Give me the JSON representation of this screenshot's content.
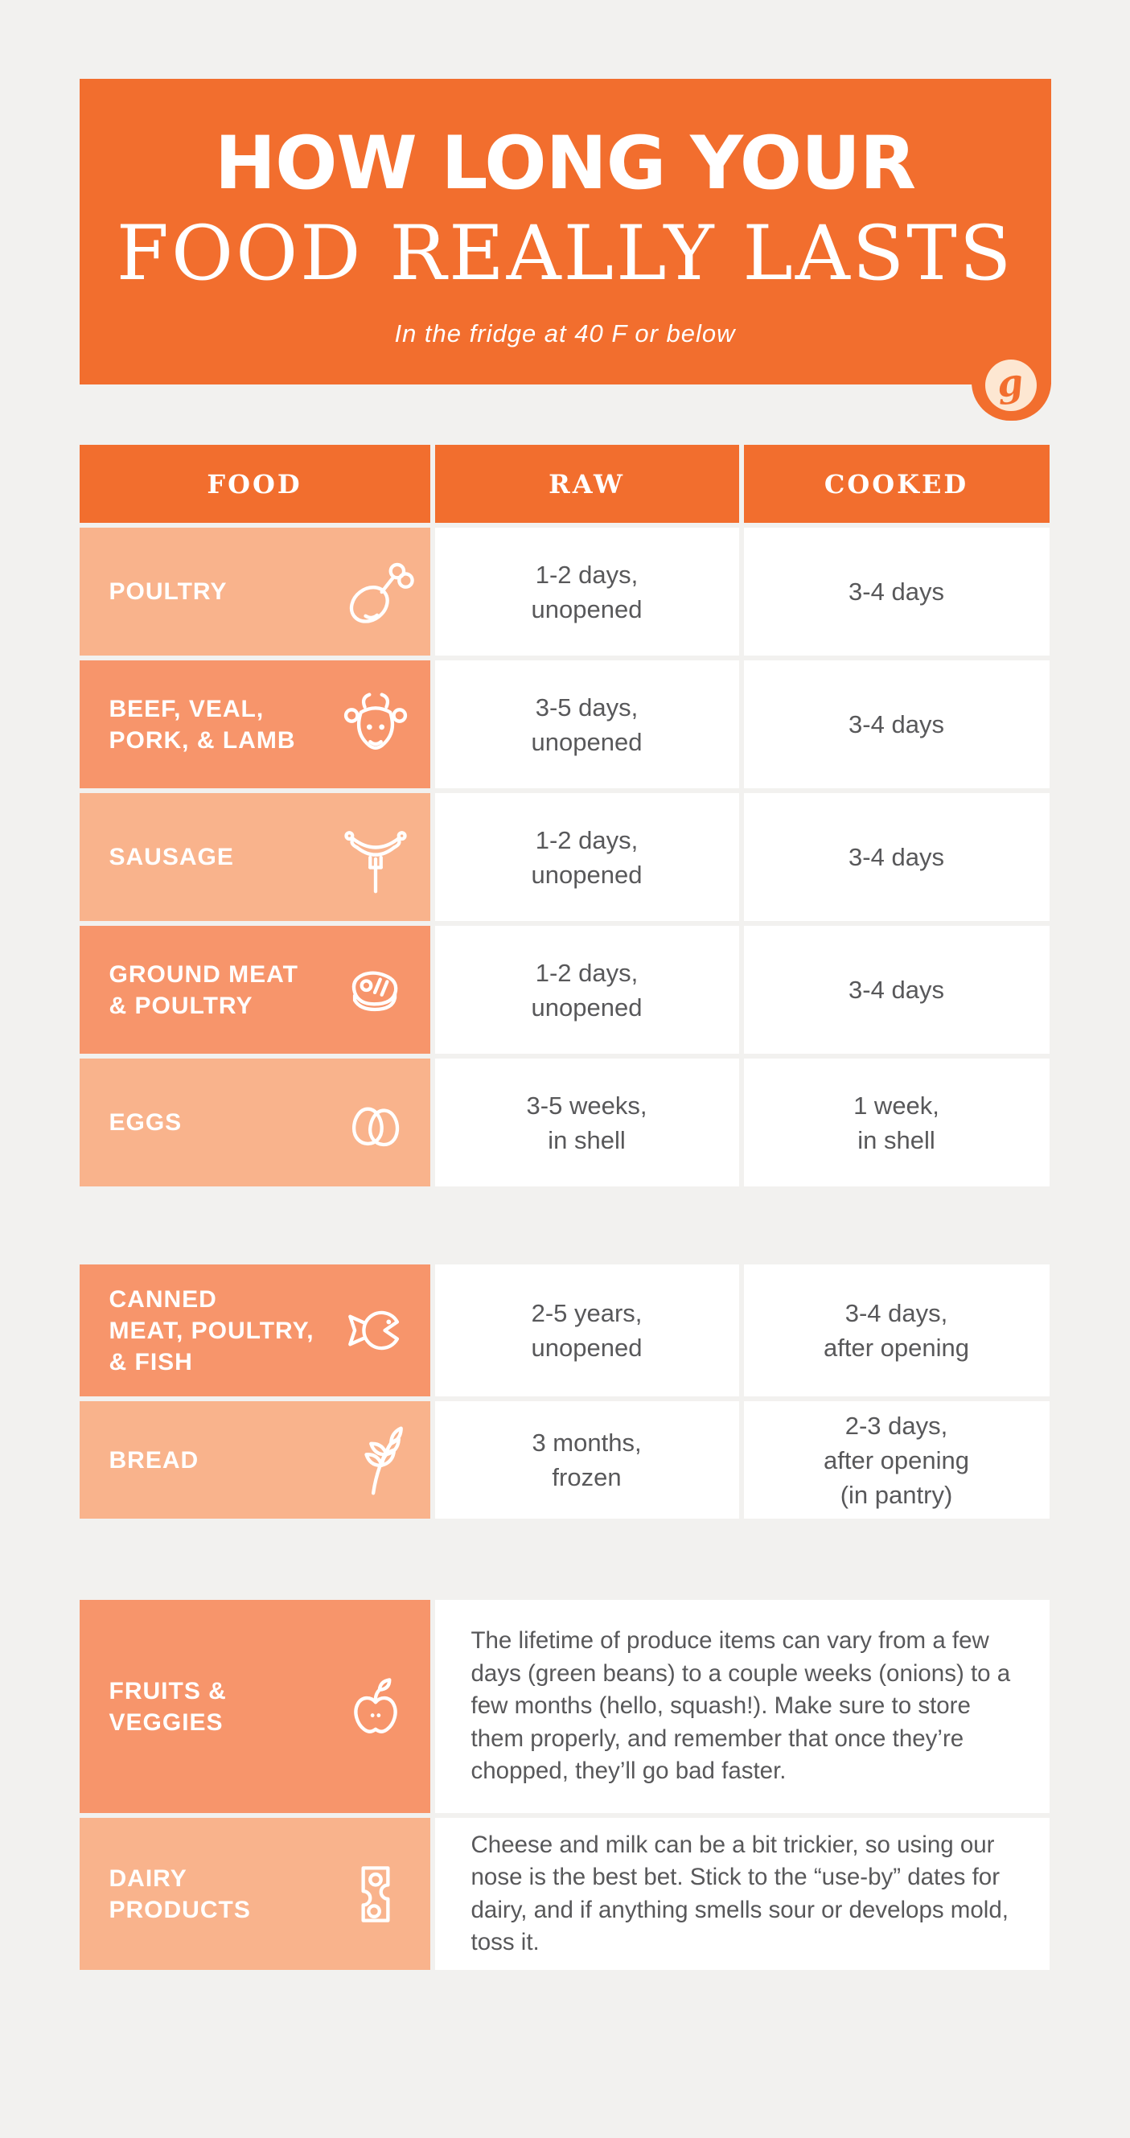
{
  "colors": {
    "header_orange": "#f26e2e",
    "row_dark": "#f7956b",
    "row_light": "#f9b38c",
    "page_background": "#f2f1ef",
    "body_text": "#58585a",
    "logo_circle_cream": "#fde7d2"
  },
  "banner": {
    "title_line1": "HOW LONG YOUR",
    "title_line2": "FOOD REALLY LASTS",
    "subtitle": "In the fridge at 40 F or below",
    "logo_letter": "g"
  },
  "table": {
    "columns": [
      "FOOD",
      "RAW",
      "COOKED"
    ],
    "section_meats": {
      "rows": [
        {
          "label_lines": [
            "POULTRY"
          ],
          "icon": "drumstick-icon",
          "shade": "light",
          "raw_lines": [
            "1-2 days,",
            "unopened"
          ],
          "cooked_lines": [
            "3-4 days"
          ]
        },
        {
          "label_lines": [
            "BEEF, VEAL,",
            "PORK, & LAMB"
          ],
          "icon": "cow-icon",
          "shade": "dark",
          "raw_lines": [
            "3-5 days,",
            "unopened"
          ],
          "cooked_lines": [
            "3-4 days"
          ]
        },
        {
          "label_lines": [
            "SAUSAGE"
          ],
          "icon": "sausage-fork-icon",
          "shade": "light",
          "raw_lines": [
            "1-2 days,",
            "unopened"
          ],
          "cooked_lines": [
            "3-4 days"
          ]
        },
        {
          "label_lines": [
            "GROUND MEAT",
            "& POULTRY"
          ],
          "icon": "steak-icon",
          "shade": "dark",
          "raw_lines": [
            "1-2 days,",
            "unopened"
          ],
          "cooked_lines": [
            "3-4 days"
          ]
        },
        {
          "label_lines": [
            "EGGS"
          ],
          "icon": "eggs-icon",
          "shade": "light",
          "raw_lines": [
            "3-5 weeks,",
            "in shell"
          ],
          "cooked_lines": [
            "1 week,",
            "in shell"
          ]
        }
      ]
    },
    "section_pantry": {
      "rows": [
        {
          "label_lines": [
            "CANNED",
            "MEAT, POULTRY,",
            "& FISH"
          ],
          "icon": "fish-icon",
          "shade": "dark",
          "raw_lines": [
            "2-5 years,",
            "unopened"
          ],
          "cooked_lines": [
            "3-4 days,",
            "after opening"
          ]
        },
        {
          "label_lines": [
            "BREAD"
          ],
          "icon": "wheat-icon",
          "shade": "light",
          "raw_lines": [
            "3 months,",
            "frozen"
          ],
          "cooked_lines": [
            "2-3 days,",
            "after opening",
            "(in pantry)"
          ]
        }
      ]
    },
    "section_notes": {
      "rows": [
        {
          "label_lines": [
            "FRUITS &",
            "VEGGIES"
          ],
          "icon": "apple-icon",
          "shade": "dark",
          "note": "The lifetime of produce items can vary from a few days (green beans) to a couple weeks (onions) to a few months (hello, squash!). Make sure to store them properly, and remember that once they’re chopped, they’ll go bad faster."
        },
        {
          "label_lines": [
            "DAIRY PRODUCTS"
          ],
          "icon": "cheese-icon",
          "shade": "light",
          "note": "Cheese and milk can be a bit trickier, so using our nose is the best bet. Stick to the “use-by” dates for dairy, and if anything smells sour or develops mold, toss it."
        }
      ]
    }
  },
  "chart_data": {
    "type": "table",
    "title": "HOW LONG YOUR FOOD REALLY LASTS",
    "subtitle": "In the fridge at 40 F or below",
    "columns": [
      "FOOD",
      "RAW",
      "COOKED"
    ],
    "rows": [
      [
        "POULTRY",
        "1-2 days, unopened",
        "3-4 days"
      ],
      [
        "BEEF, VEAL, PORK, & LAMB",
        "3-5 days, unopened",
        "3-4 days"
      ],
      [
        "SAUSAGE",
        "1-2 days, unopened",
        "3-4 days"
      ],
      [
        "GROUND MEAT & POULTRY",
        "1-2 days, unopened",
        "3-4 days"
      ],
      [
        "EGGS",
        "3-5 weeks, in shell",
        "1 week, in shell"
      ],
      [
        "CANNED MEAT, POULTRY, & FISH",
        "2-5 years, unopened",
        "3-4 days, after opening"
      ],
      [
        "BREAD",
        "3 months, frozen",
        "2-3 days, after opening (in pantry)"
      ],
      [
        "FRUITS & VEGGIES",
        "The lifetime of produce items can vary from a few days (green beans) to a couple weeks (onions) to a few months (hello, squash!). Make sure to store them properly, and remember that once they’re chopped, they’ll go bad faster.",
        ""
      ],
      [
        "DAIRY PRODUCTS",
        "Cheese and milk can be a bit trickier, so using our nose is the best bet. Stick to the “use-by” dates for dairy, and if anything smells sour or develops mold, toss it.",
        ""
      ]
    ]
  }
}
